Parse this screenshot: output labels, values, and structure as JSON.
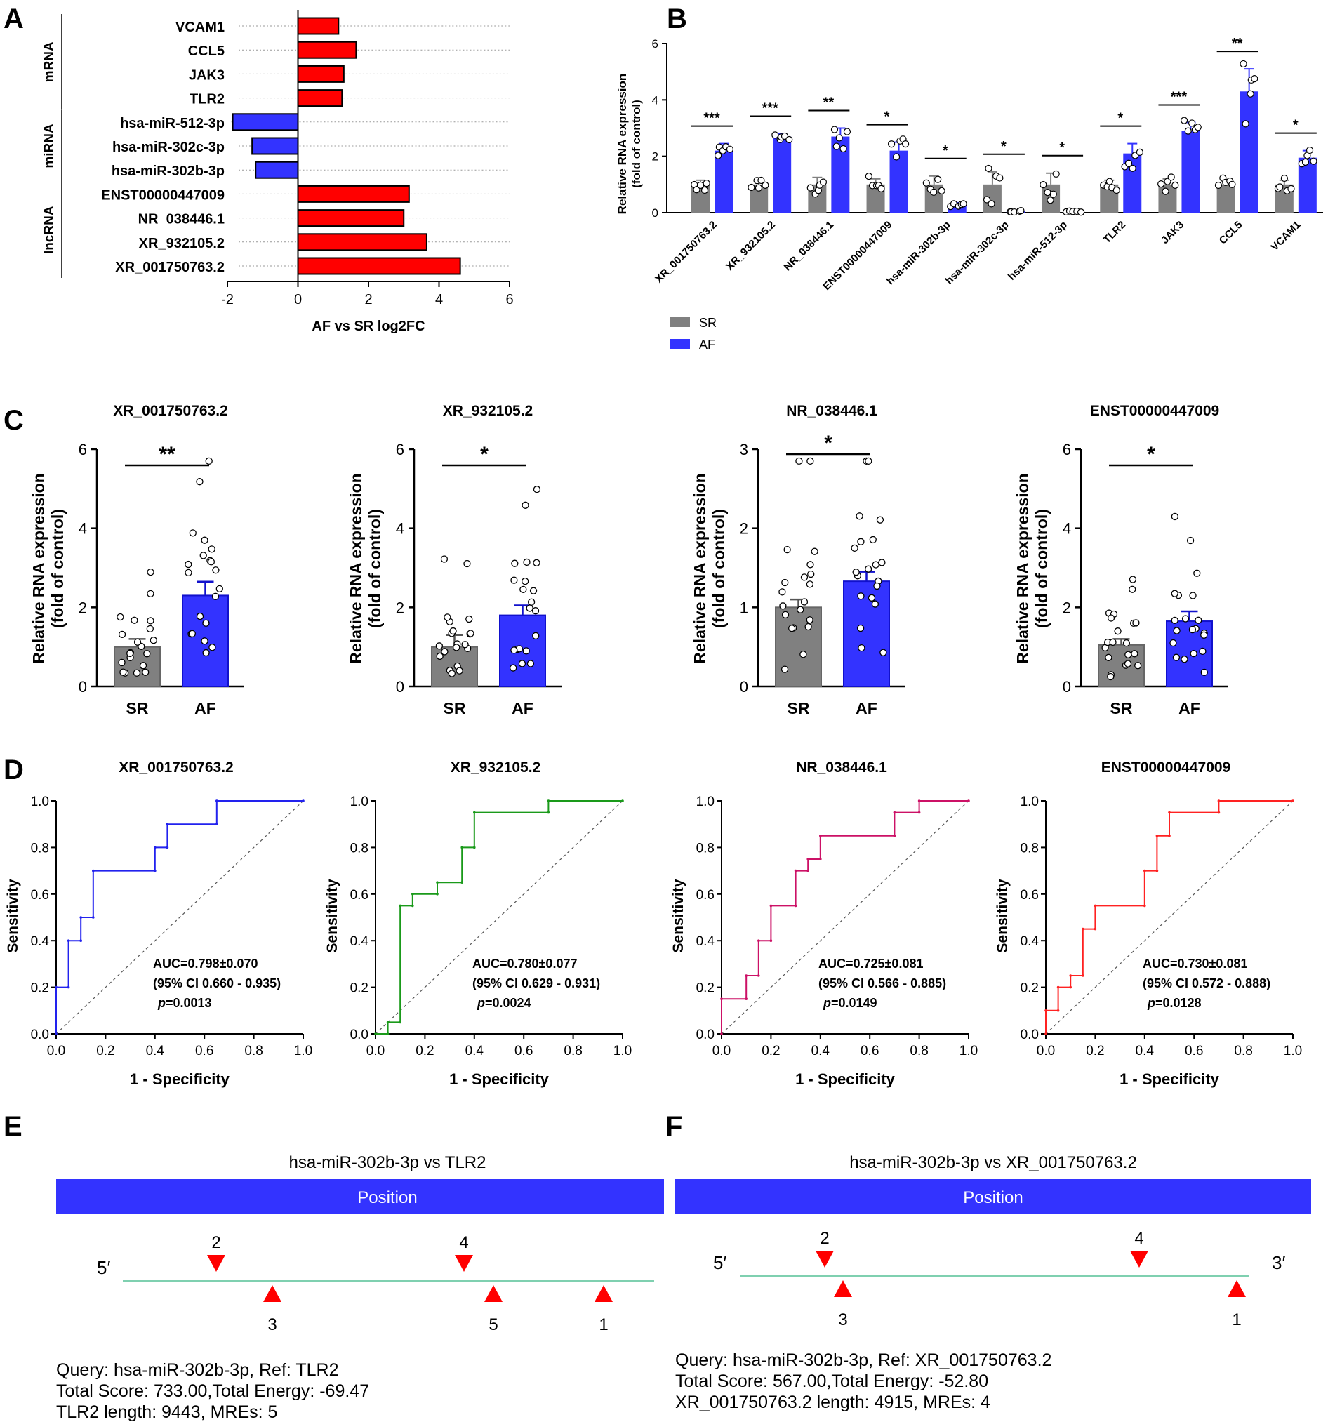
{
  "panel_letters": {
    "A": "A",
    "B": "B",
    "C": "C",
    "D": "D",
    "E": "E",
    "F": "F"
  },
  "colors": {
    "red": "#ff0000",
    "blue": "#3333ff",
    "gray": "#808080",
    "green": "#1a9a1a",
    "crimson": "#cc1166",
    "position_bar": "#3333ff",
    "line": "#7fd0b0"
  },
  "chart_data": [
    {
      "id": "A",
      "type": "bar",
      "orientation": "horizontal",
      "xlabel": "AF vs SR log2FC",
      "xlim": [
        -2,
        6
      ],
      "xticks": [
        "-2",
        "0",
        "2",
        "4",
        "6"
      ],
      "groups": [
        {
          "name": "mRNA",
          "items": [
            {
              "label": "VCAM1",
              "value": 1.15
            },
            {
              "label": "CCL5",
              "value": 1.65
            },
            {
              "label": "JAK3",
              "value": 1.3
            },
            {
              "label": "TLR2",
              "value": 1.25
            }
          ]
        },
        {
          "name": "miRNA",
          "items": [
            {
              "label": "hsa-miR-512-3p",
              "value": -1.85
            },
            {
              "label": "hsa-miR-302c-3p",
              "value": -1.3
            },
            {
              "label": "hsa-miR-302b-3p",
              "value": -1.2
            }
          ]
        },
        {
          "name": "lncRNA",
          "items": [
            {
              "label": "ENST00000447009",
              "value": 3.15
            },
            {
              "label": "NR_038446.1",
              "value": 3.0
            },
            {
              "label": "XR_932105.2",
              "value": 3.65
            },
            {
              "label": "XR_001750763.2",
              "value": 4.6
            }
          ]
        }
      ]
    },
    {
      "id": "B",
      "type": "bar",
      "ylabel_line1": "Relative RNA expression",
      "ylabel_line2": "(fold of control)",
      "ylim": [
        0,
        6
      ],
      "yticks": [
        "0",
        "2",
        "4",
        "6"
      ],
      "categories": [
        "XR_001750763.2",
        "XR_932105.2",
        "NR_038446.1",
        "ENST00000447009",
        "hsa-miR-302b-3p",
        "hsa-miR-302c-3p",
        "hsa-miR-512-3p",
        "TLR2",
        "JAK3",
        "CCL5",
        "VCAM1"
      ],
      "series": [
        {
          "name": "SR",
          "values": [
            1.0,
            1.0,
            1.0,
            1.0,
            1.0,
            1.0,
            1.0,
            1.0,
            1.0,
            1.0,
            1.0
          ],
          "errors": [
            0.15,
            0.1,
            0.25,
            0.2,
            0.3,
            0.45,
            0.4,
            0.15,
            0.2,
            0.15,
            0.15
          ]
        },
        {
          "name": "AF",
          "values": [
            2.2,
            2.7,
            2.7,
            2.2,
            0.3,
            0.05,
            0.05,
            2.1,
            2.9,
            4.3,
            1.95
          ],
          "errors": [
            0.25,
            0.1,
            0.3,
            0.3,
            0.05,
            0.02,
            0.02,
            0.35,
            0.3,
            0.8,
            0.25
          ]
        }
      ],
      "significance": [
        "***",
        "***",
        "**",
        "*",
        "*",
        "*",
        "*",
        "*",
        "***",
        "**",
        "*"
      ],
      "legend": [
        "SR",
        "AF"
      ]
    },
    {
      "id": "C",
      "type": "bar",
      "plots": [
        {
          "title": "XR_001750763.2",
          "ylim": [
            0,
            6
          ],
          "yticks": [
            "0",
            "2",
            "4",
            "6"
          ],
          "categories": [
            "SR",
            "AF"
          ],
          "values": [
            1.0,
            2.3
          ],
          "errors": [
            0.2,
            0.35
          ],
          "significance": "**"
        },
        {
          "title": "XR_932105.2",
          "ylim": [
            0,
            6
          ],
          "yticks": [
            "0",
            "2",
            "4",
            "6"
          ],
          "categories": [
            "SR",
            "AF"
          ],
          "values": [
            1.0,
            1.8
          ],
          "errors": [
            0.3,
            0.25
          ],
          "significance": "*"
        },
        {
          "title": "NR_038446.1",
          "ylim": [
            0,
            3
          ],
          "yticks": [
            "0",
            "1",
            "2",
            "3"
          ],
          "categories": [
            "SR",
            "AF"
          ],
          "values": [
            1.0,
            1.33
          ],
          "errors": [
            0.1,
            0.12
          ],
          "significance": "*"
        },
        {
          "title": "ENST00000447009",
          "ylim": [
            0,
            6
          ],
          "yticks": [
            "0",
            "2",
            "4",
            "6"
          ],
          "categories": [
            "SR",
            "AF"
          ],
          "values": [
            1.05,
            1.65
          ],
          "errors": [
            0.15,
            0.25
          ],
          "significance": "*"
        }
      ],
      "ylabel_line1": "Relative RNA expression",
      "ylabel_line2": "(fold of control)"
    },
    {
      "id": "D",
      "type": "line",
      "xlabel": "1 - Specificity",
      "ylabel": "Sensitivity",
      "xticks": [
        "0.0",
        "0.2",
        "0.4",
        "0.6",
        "0.8",
        "1.0"
      ],
      "yticks": [
        "0.0",
        "0.2",
        "0.4",
        "0.6",
        "0.8",
        "1.0"
      ],
      "plots": [
        {
          "title": "XR_001750763.2",
          "auc": "AUC=0.798±0.070",
          "ci": "(95% CI 0.660 - 0.935)",
          "p_label": "p",
          "p_value": "=0.0013",
          "points": [
            [
              0,
              0
            ],
            [
              0,
              0.2
            ],
            [
              0.05,
              0.2
            ],
            [
              0.05,
              0.4
            ],
            [
              0.1,
              0.4
            ],
            [
              0.1,
              0.5
            ],
            [
              0.15,
              0.5
            ],
            [
              0.15,
              0.7
            ],
            [
              0.4,
              0.7
            ],
            [
              0.4,
              0.8
            ],
            [
              0.45,
              0.8
            ],
            [
              0.45,
              0.9
            ],
            [
              0.65,
              0.9
            ],
            [
              0.65,
              1.0
            ],
            [
              1.0,
              1.0
            ]
          ]
        },
        {
          "title": "XR_932105.2",
          "auc": "AUC=0.780±0.077",
          "ci": "(95% CI 0.629 - 0.931)",
          "p_label": "p",
          "p_value": "=0.0024",
          "points": [
            [
              0,
              0
            ],
            [
              0.05,
              0
            ],
            [
              0.05,
              0.05
            ],
            [
              0.1,
              0.05
            ],
            [
              0.1,
              0.55
            ],
            [
              0.15,
              0.55
            ],
            [
              0.15,
              0.6
            ],
            [
              0.25,
              0.6
            ],
            [
              0.25,
              0.65
            ],
            [
              0.35,
              0.65
            ],
            [
              0.35,
              0.8
            ],
            [
              0.4,
              0.8
            ],
            [
              0.4,
              0.95
            ],
            [
              0.7,
              0.95
            ],
            [
              0.7,
              1.0
            ],
            [
              1.0,
              1.0
            ]
          ]
        },
        {
          "title": "NR_038446.1",
          "auc": "AUC=0.725±0.081",
          "ci": "(95% CI 0.566 - 0.885)",
          "p_label": "p",
          "p_value": "=0.0149",
          "points": [
            [
              0,
              0
            ],
            [
              0,
              0.15
            ],
            [
              0.1,
              0.15
            ],
            [
              0.1,
              0.25
            ],
            [
              0.15,
              0.25
            ],
            [
              0.15,
              0.4
            ],
            [
              0.2,
              0.4
            ],
            [
              0.2,
              0.55
            ],
            [
              0.3,
              0.55
            ],
            [
              0.3,
              0.7
            ],
            [
              0.35,
              0.7
            ],
            [
              0.35,
              0.75
            ],
            [
              0.4,
              0.75
            ],
            [
              0.4,
              0.85
            ],
            [
              0.7,
              0.85
            ],
            [
              0.7,
              0.95
            ],
            [
              0.8,
              0.95
            ],
            [
              0.8,
              1.0
            ],
            [
              1.0,
              1.0
            ]
          ]
        },
        {
          "title": "ENST00000447009",
          "auc": "AUC=0.730±0.081",
          "ci": "(95% CI 0.572 - 0.888)",
          "p_label": "p",
          "p_value": "=0.0128",
          "points": [
            [
              0,
              0
            ],
            [
              0,
              0.1
            ],
            [
              0.05,
              0.1
            ],
            [
              0.05,
              0.2
            ],
            [
              0.1,
              0.2
            ],
            [
              0.1,
              0.25
            ],
            [
              0.15,
              0.25
            ],
            [
              0.15,
              0.45
            ],
            [
              0.2,
              0.45
            ],
            [
              0.2,
              0.55
            ],
            [
              0.4,
              0.55
            ],
            [
              0.4,
              0.7
            ],
            [
              0.45,
              0.7
            ],
            [
              0.45,
              0.85
            ],
            [
              0.5,
              0.85
            ],
            [
              0.5,
              0.95
            ],
            [
              0.7,
              0.95
            ],
            [
              0.7,
              1.0
            ],
            [
              1.0,
              1.0
            ]
          ]
        }
      ]
    }
  ],
  "panel_E": {
    "title": "hsa-miR-302b-3p vs TLR2",
    "bar_label": "Position",
    "five_prime": "5′",
    "markers_top": [
      "2",
      "4"
    ],
    "markers_bottom": [
      "3",
      "5",
      "1"
    ],
    "query": "Query: hsa-miR-302b-3p, Ref: TLR2",
    "score": "Total Score: 733.00,Total Energy: -69.47",
    "length": "TLR2 length: 9443, MREs: 5"
  },
  "panel_F": {
    "title": "hsa-miR-302b-3p vs XR_001750763.2",
    "bar_label": "Position",
    "five_prime": "5′",
    "three_prime": "3′",
    "markers_top": [
      "2",
      "4"
    ],
    "markers_bottom": [
      "3",
      "1"
    ],
    "query": "Query: hsa-miR-302b-3p, Ref: XR_001750763.2",
    "score": "Total Score: 567.00,Total Energy: -52.80",
    "length": "XR_001750763.2 length: 4915, MREs: 4"
  }
}
